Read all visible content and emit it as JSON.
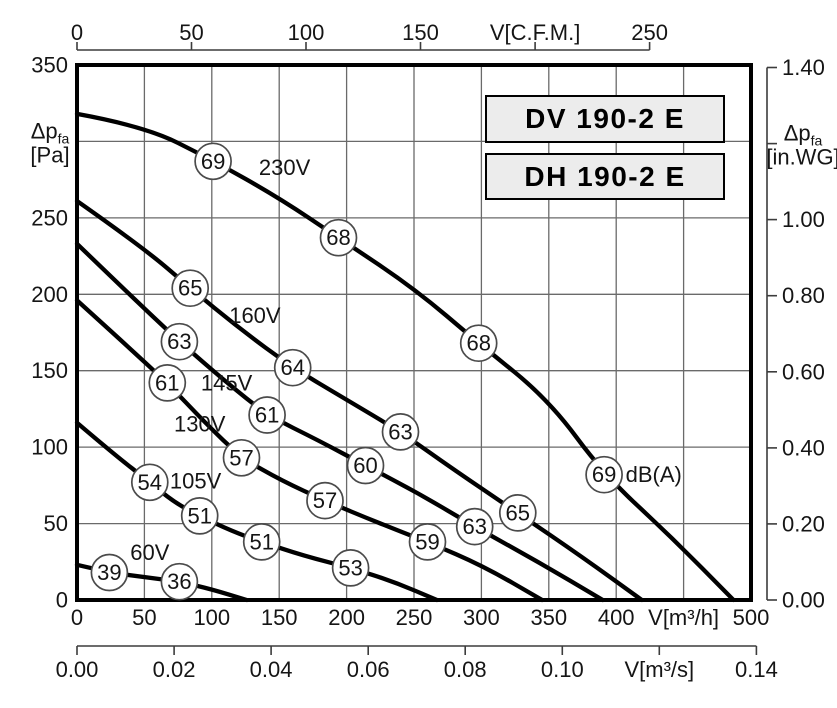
{
  "page": {
    "background": "#ffffff"
  },
  "chart_data": {
    "type": "line",
    "model_labels": [
      "DV 190-2 E",
      "DH 190-2 E"
    ],
    "plot": {
      "x_max": 500,
      "y_max": 350
    },
    "axes": {
      "bottom_m3h": {
        "unit": "V[m³/h]",
        "ticks": [
          0,
          50,
          100,
          150,
          200,
          250,
          300,
          350,
          400,
          450,
          500
        ],
        "labels": [
          "0",
          "50",
          "100",
          "150",
          "200",
          "250",
          "300",
          "350",
          "400",
          "V[m³/h]",
          "500"
        ]
      },
      "bottom_m3s": {
        "unit": "V[m³/s]",
        "ticks": [
          0,
          0.02,
          0.04,
          0.06,
          0.08,
          0.1,
          0.12,
          0.14
        ],
        "labels": [
          "0.00",
          "0.02",
          "0.04",
          "0.06",
          "0.08",
          "0.10",
          "V[m³/s]",
          "0.14"
        ]
      },
      "top_cfm": {
        "unit": "V[C.F.M.]",
        "ticks": [
          0,
          50,
          100,
          150,
          200,
          250
        ],
        "labels": [
          "0",
          "50",
          "100",
          "150",
          "V[C.F.M.]",
          "250"
        ]
      },
      "left_pa": {
        "ticks": [
          0,
          50,
          100,
          150,
          200,
          250,
          300,
          350
        ],
        "labels": [
          "0",
          "50",
          "100",
          "150",
          "200",
          "250",
          null,
          "350"
        ],
        "unit_base": "Δp",
        "unit_sub": "fa",
        "unit_line2": "[Pa]",
        "unit_at": 300
      },
      "right_inwg": {
        "ticks": [
          0,
          0.2,
          0.4,
          0.6,
          0.8,
          1.0,
          1.2,
          1.4
        ],
        "labels": [
          "0.00",
          "0.20",
          "0.40",
          "0.60",
          "0.80",
          "1.00",
          null,
          "1.40"
        ],
        "unit_base": "Δp",
        "unit_sub": "fa",
        "unit_line2": "[in.WG]",
        "unit_at": 1.2
      }
    },
    "series": [
      {
        "voltage": "230V",
        "label_xy": [
          154,
          283
        ],
        "points": [
          [
            0,
            318
          ],
          [
            50,
            310
          ],
          [
            100,
            288
          ],
          [
            150,
            263
          ],
          [
            194,
            237
          ],
          [
            250,
            204
          ],
          [
            298,
            168
          ],
          [
            350,
            131
          ],
          [
            391,
            82
          ],
          [
            440,
            42
          ],
          [
            487,
            0
          ]
        ],
        "markers": [
          {
            "x": 101,
            "y": 287,
            "db": "69"
          },
          {
            "x": 194,
            "y": 237,
            "db": "68"
          },
          {
            "x": 298,
            "y": 168,
            "db": "68"
          },
          {
            "x": 391,
            "y": 82,
            "db": "69",
            "suffix": "dB(A)"
          }
        ]
      },
      {
        "voltage": "160V",
        "label_xy": [
          132,
          186
        ],
        "points": [
          [
            0,
            261
          ],
          [
            50,
            230
          ],
          [
            84,
            204
          ],
          [
            120,
            178
          ],
          [
            160,
            152
          ],
          [
            200,
            131
          ],
          [
            240,
            110
          ],
          [
            280,
            85
          ],
          [
            327,
            57
          ],
          [
            375,
            28
          ],
          [
            419,
            0
          ]
        ],
        "markers": [
          {
            "x": 84,
            "y": 204,
            "db": "65"
          },
          {
            "x": 160,
            "y": 152,
            "db": "64"
          },
          {
            "x": 240,
            "y": 110,
            "db": "63"
          },
          {
            "x": 327,
            "y": 57,
            "db": "65"
          }
        ]
      },
      {
        "voltage": "145V",
        "label_xy": [
          111,
          142
        ],
        "points": [
          [
            0,
            233
          ],
          [
            40,
            199
          ],
          [
            76,
            169
          ],
          [
            110,
            143
          ],
          [
            141,
            121
          ],
          [
            180,
            104
          ],
          [
            214,
            88
          ],
          [
            255,
            69
          ],
          [
            295,
            48
          ],
          [
            342,
            25
          ],
          [
            390,
            0
          ]
        ],
        "markers": [
          {
            "x": 76,
            "y": 169,
            "db": "63"
          },
          {
            "x": 141,
            "y": 121,
            "db": "61"
          },
          {
            "x": 214,
            "y": 88,
            "db": "60"
          },
          {
            "x": 295,
            "y": 48,
            "db": "63"
          }
        ]
      },
      {
        "voltage": "130V",
        "label_xy": [
          91,
          115
        ],
        "points": [
          [
            0,
            196
          ],
          [
            35,
            168
          ],
          [
            67,
            142
          ],
          [
            95,
            116
          ],
          [
            122,
            93
          ],
          [
            152,
            78
          ],
          [
            184,
            65
          ],
          [
            222,
            51
          ],
          [
            260,
            38
          ],
          [
            302,
            22
          ],
          [
            345,
            0
          ]
        ],
        "markers": [
          {
            "x": 67,
            "y": 142,
            "db": "61"
          },
          {
            "x": 122,
            "y": 93,
            "db": "57"
          },
          {
            "x": 184,
            "y": 65,
            "db": "57"
          },
          {
            "x": 260,
            "y": 38,
            "db": "59"
          }
        ]
      },
      {
        "voltage": "105V",
        "label_xy": [
          88,
          78
        ],
        "points": [
          [
            0,
            116
          ],
          [
            28,
            95
          ],
          [
            54,
            77
          ],
          [
            72,
            64
          ],
          [
            91,
            55
          ],
          [
            115,
            45
          ],
          [
            137,
            38
          ],
          [
            168,
            29
          ],
          [
            203,
            21
          ],
          [
            235,
            12
          ],
          [
            267,
            0
          ]
        ],
        "markers": [
          {
            "x": 54,
            "y": 77,
            "db": "54"
          },
          {
            "x": 91,
            "y": 55,
            "db": "51"
          },
          {
            "x": 137,
            "y": 38,
            "db": "51"
          },
          {
            "x": 203,
            "y": 21,
            "db": "53"
          }
        ]
      },
      {
        "voltage": "60V",
        "label_xy": [
          54,
          31
        ],
        "points": [
          [
            0,
            23
          ],
          [
            24,
            18
          ],
          [
            50,
            15
          ],
          [
            76,
            12
          ],
          [
            100,
            7
          ],
          [
            126,
            0
          ]
        ],
        "markers": [
          {
            "x": 24,
            "y": 18,
            "db": "39"
          },
          {
            "x": 76,
            "y": 12,
            "db": "36"
          }
        ]
      }
    ],
    "colors": {
      "curve": "#000000",
      "grid": "#6a6a6a",
      "axis": "#3c3c3c",
      "text": "#151515",
      "marker_stroke": "#4b4b4b",
      "marker_fill": "#ffffff",
      "box_fill": "#ececec",
      "box_border": "#000000"
    }
  }
}
